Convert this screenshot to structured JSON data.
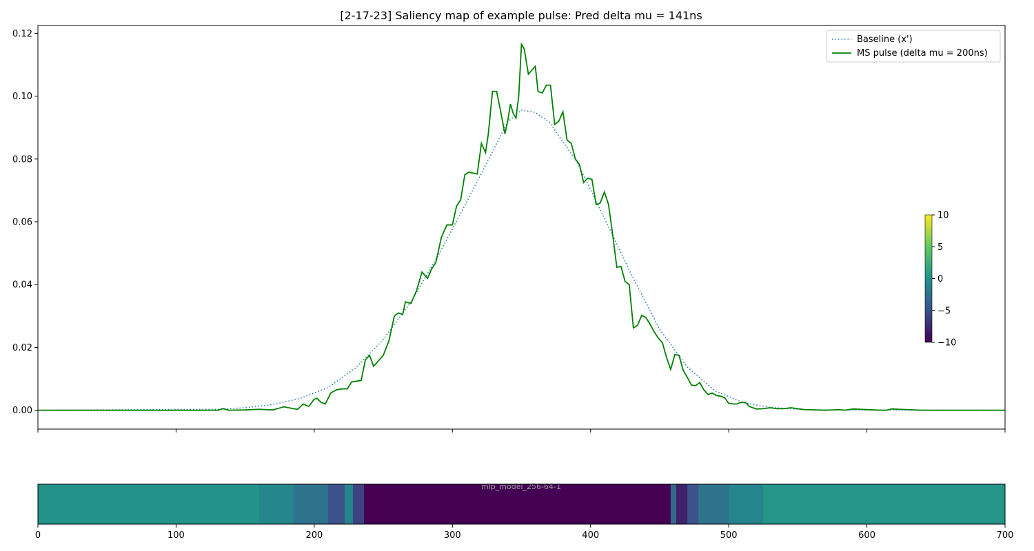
{
  "chart_data": {
    "type": "line",
    "title": "[2-17-23] Saliency map of example pulse: Pred delta mu = 141ns",
    "xlim": [
      0,
      700
    ],
    "ylim": [
      -0.006,
      0.1225
    ],
    "xticks": [
      0,
      100,
      200,
      300,
      400,
      500,
      600,
      700
    ],
    "yticks": [
      0.0,
      0.02,
      0.04,
      0.06,
      0.08,
      0.1,
      0.12
    ],
    "ytick_labels": [
      "0.00",
      "0.02",
      "0.04",
      "0.06",
      "0.08",
      "0.10",
      "0.12"
    ],
    "legend_position": "top-right",
    "colors": {
      "baseline": "#1f77b4",
      "pulse": "#008000",
      "axes": "#000000"
    },
    "series": [
      {
        "name": "Baseline (x')",
        "style": "dotted",
        "x": [
          0,
          130,
          150,
          170,
          190,
          210,
          230,
          250,
          270,
          290,
          310,
          330,
          340,
          350,
          360,
          370,
          390,
          410,
          430,
          450,
          470,
          490,
          510,
          530,
          550,
          570,
          700
        ],
        "values": [
          0.0,
          0.0003,
          0.0008,
          0.0018,
          0.0038,
          0.0072,
          0.0135,
          0.0225,
          0.0345,
          0.0495,
          0.066,
          0.0832,
          0.0918,
          0.0956,
          0.0948,
          0.0918,
          0.0792,
          0.0612,
          0.0428,
          0.0258,
          0.0138,
          0.0062,
          0.0025,
          0.0009,
          0.0003,
          0.0001,
          0.0
        ]
      },
      {
        "name": "MS pulse (delta mu = 200ns)",
        "style": "solid",
        "x": [
          0,
          130,
          134,
          138,
          150,
          160,
          170,
          178,
          185,
          188,
          192,
          196,
          200,
          202,
          205,
          208,
          212,
          216,
          220,
          224,
          227,
          230,
          234,
          237,
          240,
          243,
          246,
          250,
          254,
          258,
          261,
          264,
          266,
          270,
          274,
          278,
          282,
          285,
          288,
          292,
          296,
          300,
          303,
          306,
          309,
          312,
          315,
          318,
          321,
          324,
          326,
          329,
          332,
          335,
          338,
          340,
          342,
          344,
          346,
          348,
          350,
          352,
          355,
          358,
          360,
          362,
          365,
          368,
          371,
          374,
          377,
          380,
          383,
          386,
          389,
          392,
          395,
          398,
          401,
          404,
          407,
          410,
          413,
          416,
          419,
          422,
          425,
          428,
          431,
          434,
          437,
          440,
          443,
          446,
          449,
          452,
          455,
          458,
          461,
          464,
          467,
          470,
          473,
          476,
          479,
          482,
          485,
          488,
          491,
          494,
          497,
          500,
          503,
          506,
          509,
          512,
          515,
          520,
          525,
          530,
          535,
          540,
          545,
          555,
          570,
          580,
          584,
          590,
          610,
          614,
          618,
          640,
          700
        ],
        "values": [
          0.0,
          0.0,
          0.0005,
          0.0,
          0.0001,
          0.0003,
          0.0001,
          0.0011,
          0.0005,
          0.0003,
          0.002,
          0.0012,
          0.0035,
          0.0038,
          0.0025,
          0.002,
          0.0055,
          0.0065,
          0.0068,
          0.0068,
          0.009,
          0.0092,
          0.0095,
          0.016,
          0.0175,
          0.014,
          0.0155,
          0.0175,
          0.022,
          0.03,
          0.031,
          0.0305,
          0.0345,
          0.034,
          0.038,
          0.044,
          0.042,
          0.045,
          0.047,
          0.055,
          0.059,
          0.059,
          0.065,
          0.067,
          0.075,
          0.0758,
          0.0755,
          0.0752,
          0.085,
          0.082,
          0.088,
          0.1015,
          0.1015,
          0.095,
          0.088,
          0.092,
          0.0975,
          0.0945,
          0.093,
          0.1,
          0.1165,
          0.115,
          0.107,
          0.1085,
          0.1095,
          0.1015,
          0.101,
          0.1035,
          0.1035,
          0.091,
          0.092,
          0.095,
          0.086,
          0.085,
          0.08,
          0.0782,
          0.0725,
          0.0739,
          0.0735,
          0.0655,
          0.066,
          0.0695,
          0.0655,
          0.056,
          0.0455,
          0.0458,
          0.041,
          0.04,
          0.0262,
          0.027,
          0.0302,
          0.0295,
          0.0275,
          0.025,
          0.023,
          0.0215,
          0.0168,
          0.013,
          0.0177,
          0.0175,
          0.0128,
          0.0105,
          0.008,
          0.0078,
          0.0088,
          0.0065,
          0.005,
          0.0055,
          0.0047,
          0.0045,
          0.004,
          0.0022,
          0.002,
          0.002,
          0.0025,
          0.0025,
          0.0012,
          0.0004,
          0.0005,
          0.0008,
          0.0005,
          0.0005,
          0.0008,
          0.0002,
          0.0,
          0.0002,
          0.0,
          0.0004,
          0.0,
          0.0,
          0.0004,
          0.0,
          0.0
        ]
      }
    ],
    "saliency": {
      "xlim": [
        0,
        700
      ],
      "xticks": [
        0,
        100,
        200,
        300,
        400,
        500,
        600,
        700
      ],
      "watermark": "mlp_model_256-64-1",
      "colorbar_ticks": [
        10,
        5,
        0,
        -5,
        -10
      ],
      "range": [
        -10,
        10
      ],
      "segments": [
        {
          "x": [
            0,
            160
          ],
          "value": 0.2
        },
        {
          "x": [
            160,
            185
          ],
          "value": -0.8
        },
        {
          "x": [
            185,
            210
          ],
          "value": -2.5
        },
        {
          "x": [
            210,
            222
          ],
          "value": -5
        },
        {
          "x": [
            222,
            228
          ],
          "value": -1
        },
        {
          "x": [
            228,
            236
          ],
          "value": -6
        },
        {
          "x": [
            236,
            458
          ],
          "value": -10
        },
        {
          "x": [
            458,
            462
          ],
          "value": -3
        },
        {
          "x": [
            462,
            470
          ],
          "value": -8
        },
        {
          "x": [
            470,
            478
          ],
          "value": -5
        },
        {
          "x": [
            478,
            500
          ],
          "value": -2.5
        },
        {
          "x": [
            500,
            525
          ],
          "value": -1
        },
        {
          "x": [
            525,
            700
          ],
          "value": 0.3
        }
      ]
    }
  }
}
